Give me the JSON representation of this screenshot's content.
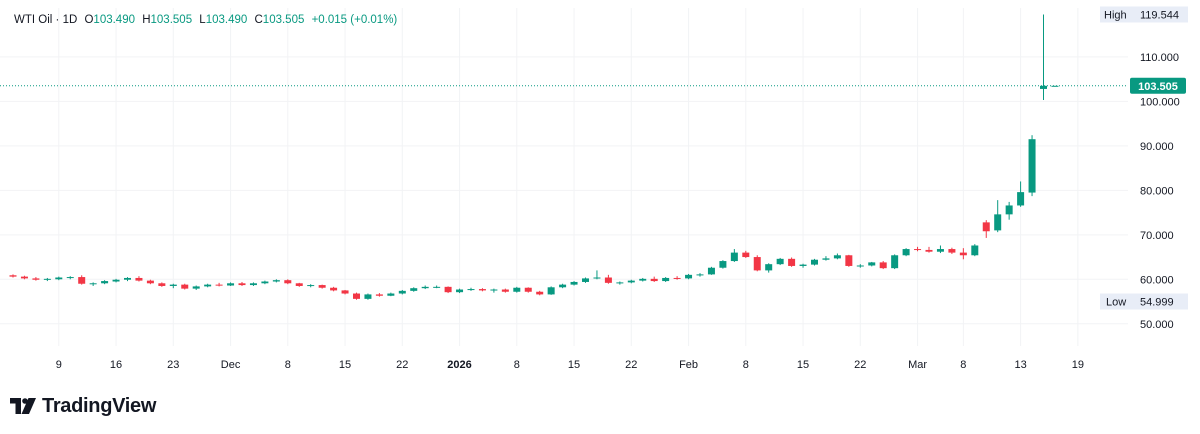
{
  "legend": {
    "symbol": "WTI Oil",
    "interval": "1D",
    "open_label": "O",
    "open": "103.490",
    "high_label": "H",
    "high": "103.505",
    "low_label": "L",
    "low": "103.490",
    "close_label": "C",
    "close": "103.505",
    "change": "+0.015 (+0.01%)"
  },
  "brand": {
    "name": "TradingView"
  },
  "colors": {
    "up": "#089981",
    "down": "#f23645",
    "last_price": "#089981",
    "grid": "#f2f3f5"
  },
  "chart_data": {
    "type": "candlestick",
    "ylim": [
      45,
      121
    ],
    "y_ticks": [
      50,
      60,
      70,
      80,
      90,
      100,
      110
    ],
    "y_tick_labels": [
      "50.000",
      "60.000",
      "70.000",
      "80.000",
      "90.000",
      "100.000",
      "110.000"
    ],
    "x_tick_labels": [
      {
        "label": "9",
        "index": 4
      },
      {
        "label": "16",
        "index": 9
      },
      {
        "label": "23",
        "index": 14
      },
      {
        "label": "Dec",
        "index": 19
      },
      {
        "label": "8",
        "index": 24
      },
      {
        "label": "15",
        "index": 29
      },
      {
        "label": "22",
        "index": 34
      },
      {
        "label": "2026",
        "index": 39,
        "bold": true
      },
      {
        "label": "8",
        "index": 44
      },
      {
        "label": "15",
        "index": 49
      },
      {
        "label": "22",
        "index": 54
      },
      {
        "label": "Feb",
        "index": 59
      },
      {
        "label": "8",
        "index": 64
      },
      {
        "label": "15",
        "index": 69
      },
      {
        "label": "22",
        "index": 74
      },
      {
        "label": "Mar",
        "index": 79
      },
      {
        "label": "8",
        "index": 83
      },
      {
        "label": "13",
        "index": 88
      },
      {
        "label": "19",
        "index": 93
      }
    ],
    "last_price": "103.505",
    "last_price_value": 103.505,
    "high_label": "High",
    "high_value": "119.544",
    "high": 119.544,
    "low_label": "Low",
    "low_value": "54.999",
    "low": 54.999,
    "candles": [
      [
        60.9,
        61.1,
        60.4,
        60.6
      ],
      [
        60.6,
        60.8,
        60.0,
        60.2
      ],
      [
        60.2,
        60.5,
        59.7,
        59.9
      ],
      [
        59.9,
        60.3,
        59.6,
        60.1
      ],
      [
        60.0,
        60.6,
        59.8,
        60.4
      ],
      [
        60.3,
        60.7,
        60.0,
        60.5
      ],
      [
        60.5,
        60.9,
        58.8,
        59.0
      ],
      [
        58.9,
        59.3,
        58.5,
        59.1
      ],
      [
        59.1,
        59.8,
        58.9,
        59.6
      ],
      [
        59.5,
        60.1,
        59.3,
        59.9
      ],
      [
        59.9,
        60.5,
        59.6,
        60.3
      ],
      [
        60.3,
        60.7,
        59.5,
        59.7
      ],
      [
        59.7,
        59.9,
        58.9,
        59.1
      ],
      [
        59.1,
        59.3,
        58.3,
        58.5
      ],
      [
        58.5,
        59.0,
        58.0,
        58.8
      ],
      [
        58.8,
        59.0,
        57.7,
        57.9
      ],
      [
        57.9,
        58.6,
        57.6,
        58.4
      ],
      [
        58.4,
        59.0,
        58.2,
        58.8
      ],
      [
        58.8,
        59.2,
        58.4,
        58.6
      ],
      [
        58.6,
        59.3,
        58.5,
        59.1
      ],
      [
        59.1,
        59.4,
        58.5,
        58.7
      ],
      [
        58.7,
        59.3,
        58.5,
        59.1
      ],
      [
        59.1,
        59.7,
        58.9,
        59.5
      ],
      [
        59.5,
        60.0,
        59.3,
        59.8
      ],
      [
        59.8,
        60.0,
        58.9,
        59.1
      ],
      [
        59.1,
        59.2,
        58.3,
        58.5
      ],
      [
        58.5,
        58.9,
        58.2,
        58.7
      ],
      [
        58.7,
        58.8,
        57.9,
        58.1
      ],
      [
        58.1,
        58.3,
        57.3,
        57.5
      ],
      [
        57.5,
        57.6,
        56.6,
        56.8
      ],
      [
        56.8,
        57.0,
        55.4,
        55.6
      ],
      [
        55.6,
        56.8,
        55.4,
        56.6
      ],
      [
        56.6,
        56.9,
        56.1,
        56.3
      ],
      [
        56.3,
        57.0,
        56.2,
        56.8
      ],
      [
        56.8,
        57.6,
        56.6,
        57.4
      ],
      [
        57.4,
        58.2,
        57.2,
        58.0
      ],
      [
        58.0,
        58.6,
        57.8,
        58.3
      ],
      [
        58.3,
        58.6,
        58.0,
        58.3
      ],
      [
        58.3,
        58.4,
        56.9,
        57.1
      ],
      [
        57.1,
        57.9,
        56.9,
        57.7
      ],
      [
        57.7,
        58.1,
        57.4,
        57.8
      ],
      [
        57.8,
        58.0,
        57.3,
        57.5
      ],
      [
        57.5,
        57.9,
        57.0,
        57.7
      ],
      [
        57.7,
        57.9,
        57.0,
        57.2
      ],
      [
        57.2,
        58.3,
        57.0,
        58.1
      ],
      [
        58.1,
        58.2,
        57.0,
        57.2
      ],
      [
        57.2,
        57.4,
        56.4,
        56.6
      ],
      [
        56.6,
        58.4,
        56.5,
        58.2
      ],
      [
        58.2,
        59.0,
        58.0,
        58.8
      ],
      [
        58.8,
        59.6,
        58.6,
        59.4
      ],
      [
        59.4,
        60.4,
        59.2,
        60.2
      ],
      [
        60.2,
        62.0,
        60.0,
        60.4
      ],
      [
        60.4,
        61.0,
        59.0,
        59.2
      ],
      [
        59.2,
        59.5,
        58.8,
        59.3
      ],
      [
        59.3,
        59.9,
        59.1,
        59.7
      ],
      [
        59.7,
        60.3,
        59.5,
        60.1
      ],
      [
        60.1,
        60.6,
        59.4,
        59.6
      ],
      [
        59.6,
        60.5,
        59.4,
        60.3
      ],
      [
        60.3,
        60.7,
        59.9,
        60.2
      ],
      [
        60.2,
        61.2,
        60.0,
        61.0
      ],
      [
        61.0,
        61.4,
        60.6,
        61.1
      ],
      [
        61.1,
        62.8,
        61.0,
        62.6
      ],
      [
        62.6,
        64.3,
        62.4,
        64.1
      ],
      [
        64.1,
        66.8,
        63.9,
        66.0
      ],
      [
        66.0,
        66.4,
        64.8,
        65.0
      ],
      [
        65.0,
        65.4,
        61.8,
        62.0
      ],
      [
        62.0,
        63.6,
        61.5,
        63.4
      ],
      [
        63.4,
        64.8,
        63.2,
        64.6
      ],
      [
        64.6,
        64.9,
        62.8,
        63.0
      ],
      [
        63.0,
        63.5,
        62.6,
        63.3
      ],
      [
        63.3,
        64.6,
        63.1,
        64.4
      ],
      [
        64.4,
        65.2,
        64.2,
        64.7
      ],
      [
        64.7,
        65.8,
        64.5,
        65.4
      ],
      [
        65.4,
        65.5,
        62.8,
        63.0
      ],
      [
        63.0,
        63.4,
        62.6,
        63.1
      ],
      [
        63.1,
        63.9,
        62.9,
        63.8
      ],
      [
        63.8,
        64.1,
        62.3,
        62.5
      ],
      [
        62.5,
        65.6,
        62.3,
        65.4
      ],
      [
        65.4,
        67.0,
        65.2,
        66.8
      ],
      [
        66.8,
        67.3,
        66.3,
        66.6
      ],
      [
        66.6,
        67.3,
        66.0,
        66.2
      ],
      [
        66.2,
        67.6,
        65.9,
        66.8
      ],
      [
        66.8,
        67.1,
        65.7,
        66.0
      ],
      [
        66.0,
        67.0,
        64.5,
        65.4
      ],
      [
        65.4,
        67.9,
        65.2,
        67.6
      ],
      [
        72.8,
        73.3,
        69.3,
        70.8
      ],
      [
        71.0,
        77.8,
        70.6,
        74.6
      ],
      [
        74.6,
        77.4,
        73.4,
        76.6
      ],
      [
        76.6,
        82.0,
        76.3,
        79.6
      ],
      [
        79.5,
        92.4,
        78.7,
        91.5
      ],
      [
        102.8,
        119.544,
        100.3,
        103.5
      ],
      [
        103.49,
        103.505,
        103.49,
        103.505
      ]
    ]
  }
}
